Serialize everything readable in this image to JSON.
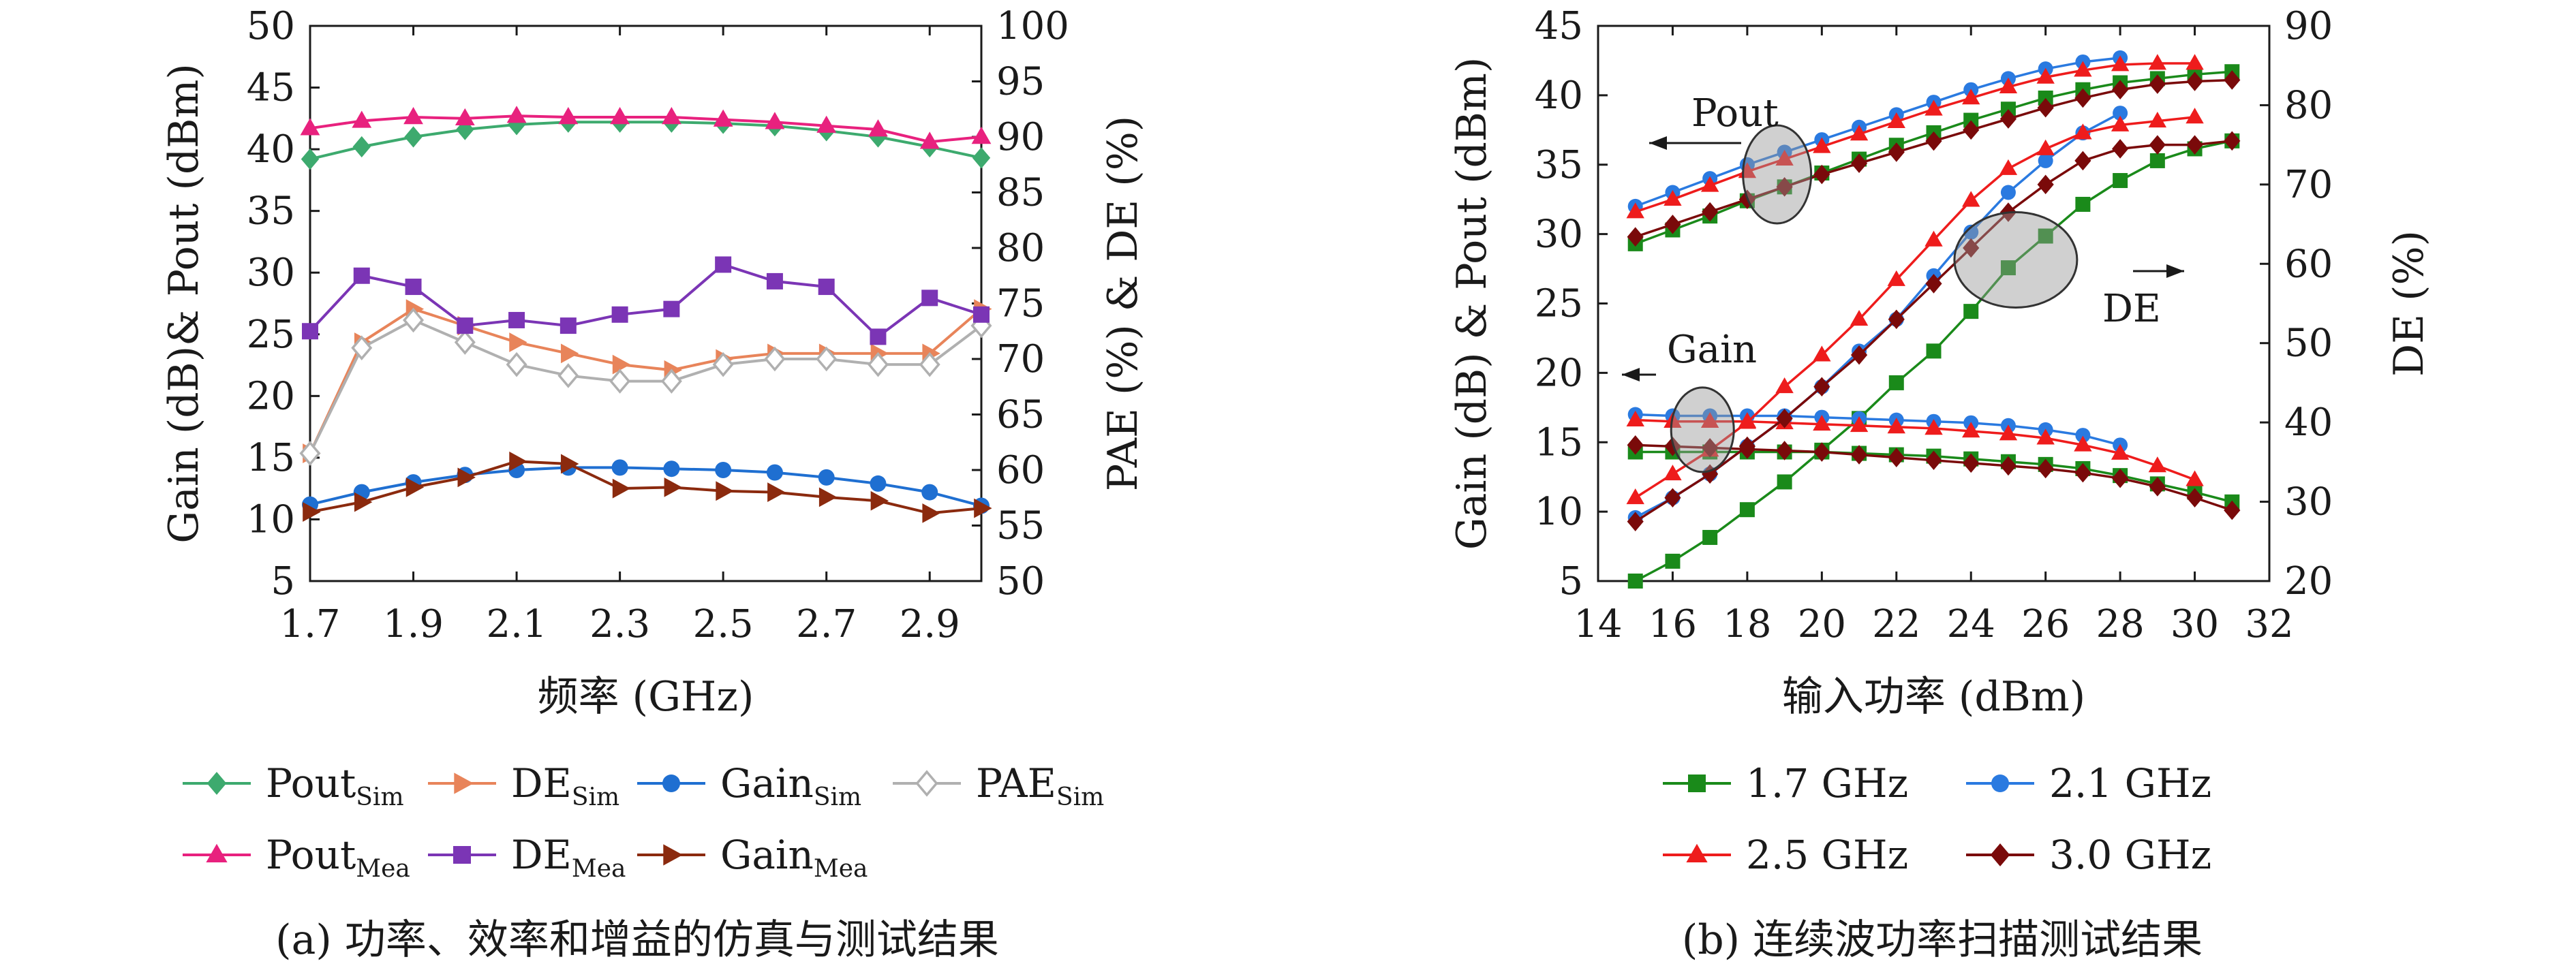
{
  "colors": {
    "pout_sim": "#3daa6e",
    "de_sim": "#e8845a",
    "gain_sim": "#1f6fd1",
    "pae_sim": "#b0b0b0",
    "pout_mea": "#e8217e",
    "de_mea": "#7b35b5",
    "gain_mea": "#8b2a0e",
    "f17": "#1a8a1a",
    "f21": "#2a7ae0",
    "f25": "#ee1c1c",
    "f30": "#7a0a0a"
  },
  "chart_data": [
    {
      "type": "line",
      "panel": "a",
      "caption": "(a) 功率、效率和增益的仿真与测试结果",
      "xlabel": "频率 (GHz)",
      "ylabel_left": "Gain (dB)& Pout (dBm)",
      "ylabel_right": "PAE (%) & DE (%)",
      "xlim": [
        1.7,
        3.0
      ],
      "ylim_left": [
        5,
        50
      ],
      "ylim_right": [
        50,
        100
      ],
      "x_ticks": [
        "1.7",
        "1.9",
        "2.1",
        "2.3",
        "2.5",
        "2.7",
        "2.9"
      ],
      "y_ticks_left": [
        "5",
        "10",
        "15",
        "20",
        "25",
        "30",
        "35",
        "40",
        "45",
        "50"
      ],
      "y_ticks_right": [
        "50",
        "55",
        "60",
        "65",
        "70",
        "75",
        "80",
        "85",
        "90",
        "95",
        "100"
      ],
      "x": [
        1.7,
        1.8,
        1.9,
        2.0,
        2.1,
        2.2,
        2.3,
        2.4,
        2.5,
        2.6,
        2.7,
        2.8,
        2.9,
        3.0
      ],
      "series": [
        {
          "key": "pout_sim",
          "name": "Pout",
          "sub": "Sim",
          "axis": "left",
          "marker": "diamond",
          "values": [
            39.2,
            40.2,
            41.0,
            41.6,
            42.0,
            42.2,
            42.2,
            42.2,
            42.1,
            41.9,
            41.5,
            41.0,
            40.2,
            39.3
          ]
        },
        {
          "key": "de_sim",
          "name": "DE",
          "sub": "Sim",
          "axis": "right",
          "marker": "tri-right",
          "values": [
            61.5,
            71.5,
            74.5,
            73.0,
            71.5,
            70.5,
            69.5,
            69.0,
            70.0,
            70.5,
            70.5,
            70.5,
            70.5,
            74.5
          ]
        },
        {
          "key": "gain_sim",
          "name": "Gain",
          "sub": "Sim",
          "axis": "left",
          "marker": "circle",
          "values": [
            11.2,
            12.2,
            13.0,
            13.6,
            14.0,
            14.2,
            14.2,
            14.1,
            14.0,
            13.8,
            13.4,
            12.9,
            12.2,
            11.1
          ]
        },
        {
          "key": "pae_sim",
          "name": "PAE",
          "sub": "Sim",
          "axis": "right",
          "marker": "open-diamond",
          "values": [
            61.5,
            71.0,
            73.5,
            71.5,
            69.5,
            68.5,
            68.0,
            68.0,
            69.5,
            70.0,
            70.0,
            69.5,
            69.5,
            73.0
          ]
        },
        {
          "key": "pout_mea",
          "name": "Pout",
          "sub": "Mea",
          "axis": "left",
          "marker": "triangle",
          "values": [
            41.7,
            42.3,
            42.6,
            42.5,
            42.7,
            42.6,
            42.6,
            42.6,
            42.4,
            42.2,
            41.9,
            41.6,
            40.6,
            41.0
          ]
        },
        {
          "key": "de_mea",
          "name": "DE",
          "sub": "Mea",
          "axis": "right",
          "marker": "square",
          "values": [
            72.5,
            77.5,
            76.5,
            73.0,
            73.5,
            73.0,
            74.0,
            74.5,
            78.5,
            77.0,
            76.5,
            72.0,
            75.5,
            74.0
          ]
        },
        {
          "key": "gain_mea",
          "name": "Gain",
          "sub": "Mea",
          "axis": "left",
          "marker": "tri-right",
          "values": [
            10.6,
            11.4,
            12.6,
            13.4,
            14.7,
            14.5,
            12.5,
            12.6,
            12.3,
            12.2,
            11.8,
            11.5,
            10.5,
            10.9
          ]
        }
      ],
      "legend": {
        "placement": "below",
        "rows": [
          [
            "pout_sim",
            "de_sim",
            "gain_sim",
            "pae_sim"
          ],
          [
            "pout_mea",
            "de_mea",
            "gain_mea"
          ]
        ]
      }
    },
    {
      "type": "line",
      "panel": "b",
      "caption": "(b) 连续波功率扫描测试结果",
      "xlabel": "输入功率 (dBm)",
      "ylabel_left": "Gain (dB) & Pout (dBm)",
      "ylabel_right": "DE (%)",
      "xlim": [
        14,
        32
      ],
      "ylim_left": [
        5,
        45
      ],
      "ylim_right": [
        20,
        90
      ],
      "x_ticks": [
        "14",
        "16",
        "18",
        "20",
        "22",
        "24",
        "26",
        "28",
        "30",
        "32"
      ],
      "y_ticks_left": [
        "5",
        "10",
        "15",
        "20",
        "25",
        "30",
        "35",
        "40",
        "45"
      ],
      "y_ticks_right": [
        "20",
        "30",
        "40",
        "50",
        "60",
        "70",
        "80",
        "90"
      ],
      "annotations": [
        "Pout",
        "Gain",
        "DE"
      ],
      "series": [
        {
          "key": "f17",
          "name": "1.7 GHz",
          "marker": "square",
          "x": [
            15,
            16,
            17,
            18,
            19,
            20,
            21,
            22,
            23,
            24,
            25,
            26,
            27,
            28,
            29,
            30,
            31
          ],
          "pout": [
            29.3,
            30.3,
            31.3,
            32.4,
            33.4,
            34.4,
            35.4,
            36.4,
            37.3,
            38.2,
            39.0,
            39.8,
            40.4,
            40.9,
            41.2,
            41.5,
            41.7
          ],
          "gain": [
            14.3,
            14.3,
            14.3,
            14.3,
            14.3,
            14.3,
            14.2,
            14.1,
            14.0,
            13.8,
            13.6,
            13.4,
            13.1,
            12.6,
            12.0,
            11.4,
            10.7
          ],
          "de": [
            20.0,
            22.5,
            25.5,
            29.0,
            32.5,
            36.5,
            40.5,
            45.0,
            49.0,
            54.0,
            59.5,
            63.5,
            67.5,
            70.5,
            73.0,
            74.5,
            75.5
          ]
        },
        {
          "key": "f21",
          "name": "2.1 GHz",
          "marker": "circle",
          "x": [
            15,
            16,
            17,
            18,
            19,
            20,
            21,
            22,
            23,
            24,
            25,
            26,
            27,
            28
          ],
          "pout": [
            32.0,
            33.0,
            34.0,
            35.0,
            35.9,
            36.8,
            37.7,
            38.6,
            39.5,
            40.4,
            41.2,
            41.9,
            42.4,
            42.7
          ],
          "gain": [
            17.0,
            16.9,
            16.9,
            16.9,
            16.9,
            16.8,
            16.7,
            16.6,
            16.5,
            16.4,
            16.2,
            15.9,
            15.5,
            14.8
          ],
          "de": [
            28.0,
            30.5,
            33.5,
            37.0,
            40.5,
            44.5,
            49.0,
            53.0,
            58.5,
            64.0,
            69.0,
            73.0,
            76.5,
            79.0
          ]
        },
        {
          "key": "f25",
          "name": "2.5 GHz",
          "marker": "triangle",
          "x": [
            15,
            16,
            17,
            18,
            19,
            20,
            21,
            22,
            23,
            24,
            25,
            26,
            27,
            28,
            29,
            30
          ],
          "pout": [
            31.6,
            32.5,
            33.5,
            34.5,
            35.4,
            36.3,
            37.2,
            38.1,
            39.0,
            39.8,
            40.6,
            41.3,
            41.8,
            42.2,
            42.3,
            42.3
          ],
          "gain": [
            16.6,
            16.5,
            16.5,
            16.5,
            16.4,
            16.3,
            16.2,
            16.1,
            16.0,
            15.8,
            15.6,
            15.3,
            14.8,
            14.2,
            13.3,
            12.3
          ],
          "de": [
            30.5,
            33.5,
            36.5,
            40.0,
            44.5,
            48.5,
            53.0,
            58.0,
            63.0,
            68.0,
            72.0,
            74.5,
            76.5,
            77.5,
            78.0,
            78.5
          ]
        },
        {
          "key": "f30",
          "name": "3.0 GHz",
          "marker": "diamond",
          "x": [
            15,
            16,
            17,
            18,
            19,
            20,
            21,
            22,
            23,
            24,
            25,
            26,
            27,
            28,
            29,
            30,
            31
          ],
          "pout": [
            29.8,
            30.7,
            31.6,
            32.5,
            33.4,
            34.3,
            35.1,
            35.9,
            36.7,
            37.5,
            38.3,
            39.1,
            39.8,
            40.4,
            40.8,
            41.0,
            41.1
          ],
          "gain": [
            14.8,
            14.7,
            14.6,
            14.5,
            14.4,
            14.3,
            14.1,
            13.9,
            13.7,
            13.5,
            13.3,
            13.1,
            12.8,
            12.4,
            11.8,
            11.0,
            10.1
          ],
          "de": [
            27.5,
            30.5,
            33.5,
            37.0,
            40.5,
            44.5,
            48.5,
            53.0,
            57.5,
            62.0,
            66.5,
            70.0,
            73.0,
            74.5,
            75.0,
            75.0,
            75.5
          ]
        }
      ],
      "legend": {
        "placement": "below",
        "rows": [
          [
            "f17",
            "f21"
          ],
          [
            "f25",
            "f30"
          ]
        ]
      }
    }
  ]
}
